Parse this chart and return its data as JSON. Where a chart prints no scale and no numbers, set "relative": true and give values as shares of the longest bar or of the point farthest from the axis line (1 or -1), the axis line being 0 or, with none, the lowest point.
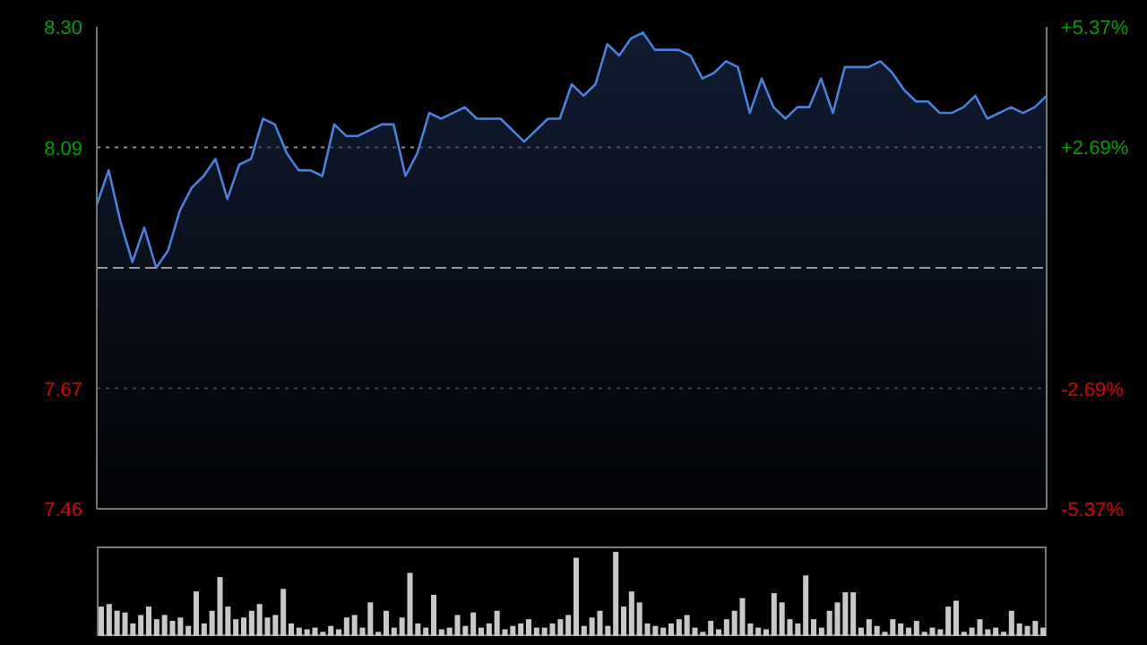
{
  "chart_data": [
    {
      "type": "area",
      "categories": [
        null,
        null,
        null,
        null,
        null,
        null,
        null,
        null,
        null,
        null,
        null,
        null,
        null,
        null,
        null,
        null,
        null,
        null,
        null,
        null,
        null,
        null,
        null,
        null,
        null,
        null,
        null,
        null,
        null,
        null,
        null,
        null,
        null,
        null,
        null,
        null,
        null,
        null,
        null,
        null,
        null,
        null,
        null,
        null,
        null,
        null,
        null,
        null,
        null,
        null,
        null,
        null,
        null,
        null,
        null,
        null,
        null,
        null,
        null,
        null,
        null,
        null,
        null,
        null,
        null,
        null,
        null,
        null,
        null,
        null,
        null,
        null,
        null,
        null,
        null,
        null,
        null,
        null,
        null,
        null,
        null
      ],
      "series": [
        {
          "color": "#4a80dc",
          "values": [
            7.99,
            8.05,
            7.96,
            7.89,
            7.95,
            7.88,
            7.91,
            7.98,
            8.02,
            8.04,
            8.07,
            8.0,
            8.06,
            8.07,
            8.14,
            8.13,
            8.08,
            8.05,
            8.05,
            8.04,
            8.13,
            8.11,
            8.11,
            8.12,
            8.13,
            8.13,
            8.04,
            8.08,
            8.15,
            8.14,
            8.15,
            8.16,
            8.14,
            8.14,
            8.14,
            8.12,
            8.1,
            8.12,
            8.14,
            8.14,
            8.2,
            8.18,
            8.2,
            8.27,
            8.25,
            8.28,
            8.29,
            8.26,
            8.26,
            8.26,
            8.25,
            8.21,
            8.22,
            8.24,
            8.23,
            8.15,
            8.21,
            8.16,
            8.14,
            8.16,
            8.16,
            8.21,
            8.15,
            8.23,
            8.23,
            8.23,
            8.24,
            8.22,
            8.19,
            8.17,
            8.17,
            8.15,
            8.15,
            8.16,
            8.18,
            8.14,
            8.15,
            8.16,
            8.15,
            8.16,
            8.18
          ]
        }
      ],
      "ylim": [
        7.46,
        8.3
      ],
      "yticks": [
        7.46,
        7.67,
        {
          "value": 8.09,
          "label": "8.09"
        },
        {
          "value": 8.3,
          "label": "8.30"
        }
      ],
      "y2lim": [
        -5.37,
        5.37
      ],
      "y2ticks": [
        {
          "value": -5.37,
          "label": "-5.37%"
        },
        {
          "value": -2.69,
          "label": "-2.69%"
        },
        {
          "value": 2.69,
          "label": "+2.69%"
        },
        {
          "value": 5.37,
          "label": "+5.37%"
        }
      ],
      "ref_lines": [
        {
          "axis": "y",
          "value": 7.88,
          "color": "#9a9a9a",
          "line_style": "dashed"
        }
      ],
      "grid": "y",
      "marker": "none",
      "tick_labels": "y"
    },
    {
      "type": "bar",
      "relative": true,
      "color": "#c8c8c8",
      "categories": [
        null,
        null,
        null,
        null,
        null,
        null,
        null,
        null,
        null,
        null,
        null,
        null,
        null,
        null,
        null,
        null,
        null,
        null,
        null,
        null,
        null,
        null,
        null,
        null,
        null,
        null,
        null,
        null,
        null,
        null,
        null,
        null,
        null,
        null,
        null,
        null,
        null,
        null,
        null,
        null,
        null,
        null,
        null,
        null,
        null,
        null,
        null,
        null,
        null,
        null,
        null,
        null,
        null,
        null,
        null,
        null,
        null,
        null,
        null,
        null,
        null,
        null,
        null,
        null,
        null,
        null,
        null,
        null,
        null,
        null,
        null,
        null,
        null,
        null,
        null,
        null,
        null,
        null,
        null,
        null,
        null,
        null,
        null,
        null,
        null,
        null,
        null,
        null,
        null,
        null,
        null,
        null,
        null,
        null,
        null,
        null,
        null,
        null,
        null,
        null,
        null,
        null,
        null,
        null,
        null,
        null,
        null,
        null,
        null,
        null,
        null,
        null,
        null,
        null,
        null,
        null,
        null,
        null,
        null,
        null
      ],
      "values": [
        0.35,
        0.38,
        0.3,
        0.28,
        0.15,
        0.25,
        0.35,
        0.2,
        0.25,
        0.18,
        0.22,
        0.12,
        0.53,
        0.15,
        0.3,
        0.7,
        0.35,
        0.2,
        0.22,
        0.3,
        0.38,
        0.22,
        0.25,
        0.56,
        0.15,
        0.1,
        0.08,
        0.1,
        0.05,
        0.12,
        0.08,
        0.22,
        0.25,
        0.1,
        0.4,
        0.05,
        0.3,
        0.1,
        0.22,
        0.75,
        0.15,
        0.1,
        0.49,
        0.08,
        0.1,
        0.25,
        0.12,
        0.28,
        0.1,
        0.15,
        0.3,
        0.08,
        0.12,
        0.15,
        0.2,
        0.1,
        0.1,
        0.15,
        0.2,
        0.25,
        0.93,
        0.12,
        0.22,
        0.3,
        0.12,
        1,
        0.35,
        0.53,
        0.4,
        0.15,
        0.12,
        0.1,
        0.15,
        0.2,
        0.25,
        0.1,
        0.05,
        0.18,
        0.08,
        0.2,
        0.3,
        0.45,
        0.15,
        0.1,
        0.08,
        0.51,
        0.4,
        0.2,
        0.15,
        0.72,
        0.2,
        0.1,
        0.3,
        0.4,
        0.52,
        0.52,
        0.1,
        0.2,
        0.12,
        0.05,
        0.2,
        0.15,
        0.1,
        0.18,
        0.05,
        0.1,
        0.08,
        0.35,
        0.42,
        0.05,
        0.1,
        0.2,
        0.08,
        0.1,
        0.05,
        0.3,
        0.15,
        0.12,
        0.18,
        0.1
      ]
    }
  ]
}
